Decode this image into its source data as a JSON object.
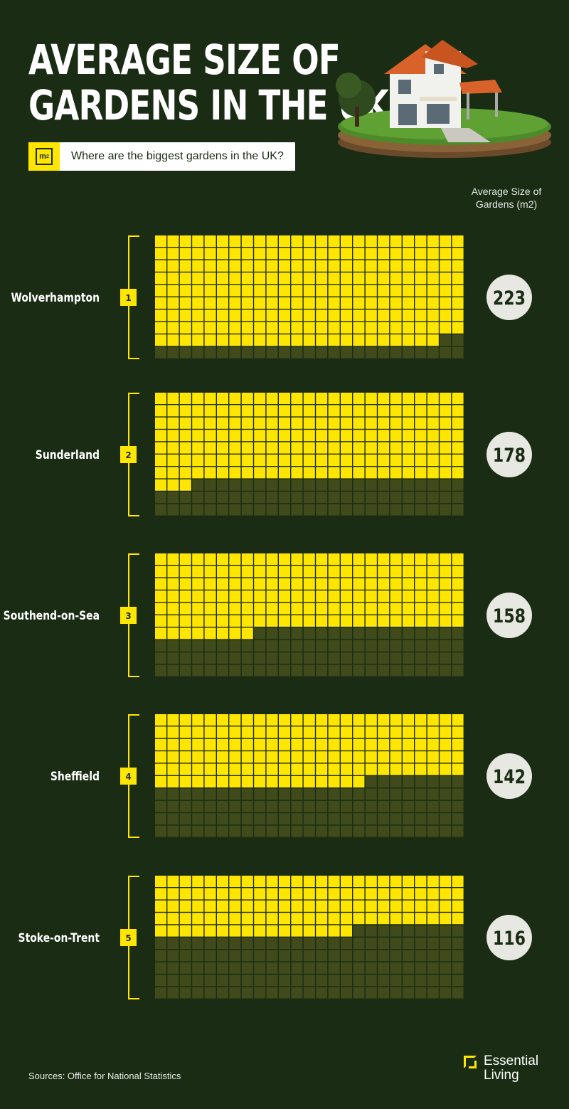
{
  "title_lines": [
    "AVERAGE SIZE OF",
    "GARDENS IN THE UK"
  ],
  "subtitle": "Where are the biggest gardens in the UK?",
  "badge_icon": "m2-icon",
  "column_header": [
    "Average Size of",
    "Gardens (m2)"
  ],
  "colors": {
    "background": "#1a2d14",
    "filled": "#ffe600",
    "empty": "#404a1a",
    "bubble": "#e8e8e3",
    "value_text": "#1a2d14"
  },
  "chart_data": {
    "type": "waffle",
    "grid": {
      "rows": 10,
      "cols": 25,
      "cell_value_m2": 1
    },
    "categories": [
      "Wolverhampton",
      "Sunderland",
      "Southend-on-Sea",
      "Sheffield",
      "Stoke-on-Trent"
    ],
    "ranks": [
      "1",
      "2",
      "3",
      "4",
      "5"
    ],
    "values": [
      223,
      178,
      158,
      142,
      116
    ],
    "value_labels": [
      "223",
      "178",
      "158",
      "142",
      "116"
    ],
    "ylabel": "Average Size of Gardens (m2)"
  },
  "source": "Sources: Office for National Statistics",
  "logo": [
    "Essential",
    "Living"
  ]
}
